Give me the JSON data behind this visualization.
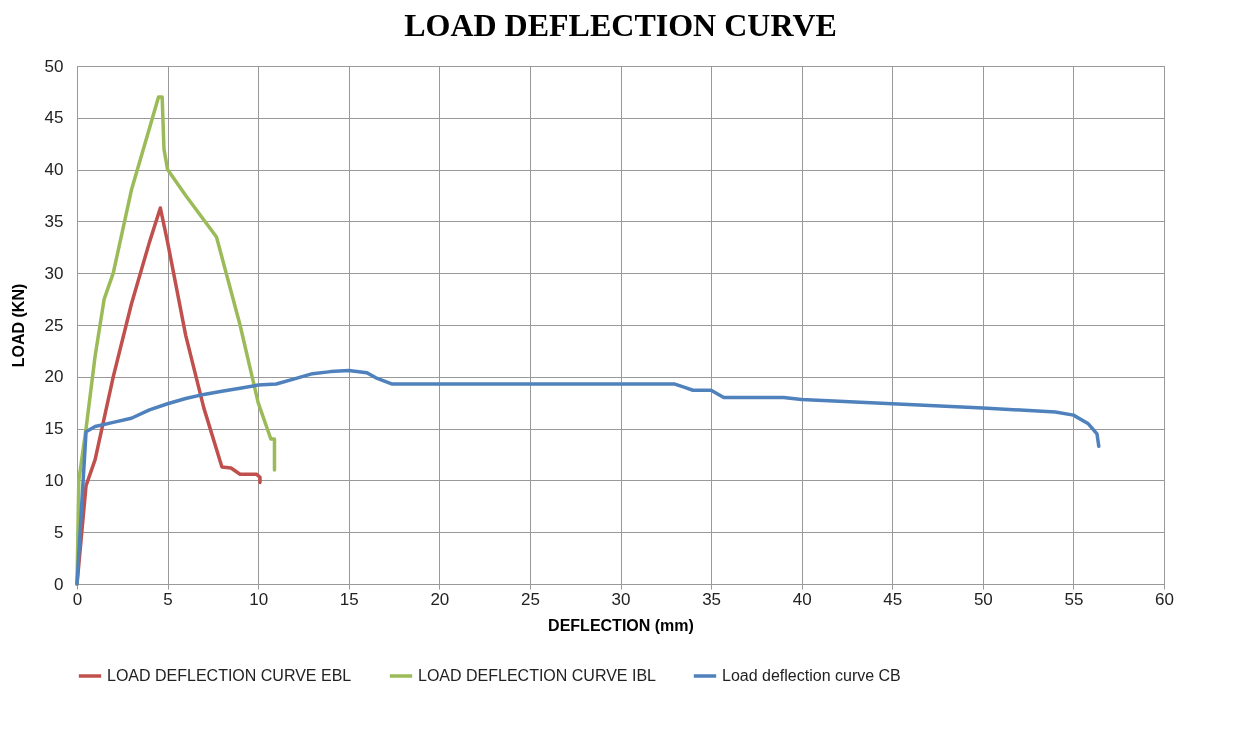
{
  "chart_data": {
    "type": "line",
    "title": "LOAD DEFLECTION CURVE",
    "xlabel": "DEFLECTION (mm)",
    "ylabel": "LOAD (KN)",
    "xlim": [
      0,
      60
    ],
    "xticks": [
      0,
      5,
      10,
      15,
      20,
      25,
      30,
      35,
      40,
      45,
      50,
      55,
      60
    ],
    "ylim": [
      0,
      50
    ],
    "yticks": [
      0,
      5,
      10,
      15,
      20,
      25,
      30,
      35,
      40,
      45,
      50
    ],
    "grid": true,
    "legend": "bottom",
    "marker": "none",
    "line_style": "solid",
    "series": [
      {
        "name": "LOAD DEFLECTION CURVE EBL",
        "color": "#c0504d",
        "x": [
          0,
          0.5,
          1,
          2,
          3,
          4,
          4.6,
          5,
          6,
          7,
          8,
          8.5,
          9,
          9.9,
          10.1,
          10.1
        ],
        "values": [
          0,
          9.5,
          12,
          20,
          27,
          33,
          36.3,
          33,
          24,
          17,
          11.3,
          11.2,
          10.6,
          10.6,
          10.3,
          9.8
        ]
      },
      {
        "name": "LOAD DEFLECTION CURVE IBL",
        "color": "#9bbb59",
        "x": [
          0,
          0.1,
          0.5,
          1,
          1.5,
          2,
          3,
          4,
          4.5,
          4.7,
          4.8,
          5,
          6,
          7.7,
          9,
          10,
          10.7,
          10.9,
          10.9
        ],
        "values": [
          0,
          10,
          15,
          22,
          27.5,
          30,
          38,
          44,
          47,
          47,
          42,
          40,
          37.5,
          33.5,
          25,
          17.5,
          14,
          14,
          11
        ]
      },
      {
        "name": "Load deflection curve CB",
        "color": "#4f81bd",
        "x": [
          0,
          0.5,
          1,
          2,
          3,
          4,
          5,
          6,
          7,
          8,
          9,
          10,
          11,
          12,
          13,
          14,
          15,
          16,
          16.5,
          17.4,
          20,
          33,
          33.5,
          34,
          35,
          35.7,
          39,
          40,
          45,
          50,
          54,
          55,
          55.8,
          56.3,
          56.4
        ],
        "values": [
          0,
          14.7,
          15.2,
          15.6,
          16,
          16.8,
          17.4,
          17.9,
          18.3,
          18.6,
          18.9,
          19.2,
          19.3,
          19.8,
          20.3,
          20.5,
          20.6,
          20.4,
          19.9,
          19.3,
          19.3,
          19.3,
          19,
          18.7,
          18.7,
          18,
          18,
          17.8,
          17.4,
          17,
          16.6,
          16.3,
          15.5,
          14.5,
          13.3
        ]
      }
    ]
  }
}
